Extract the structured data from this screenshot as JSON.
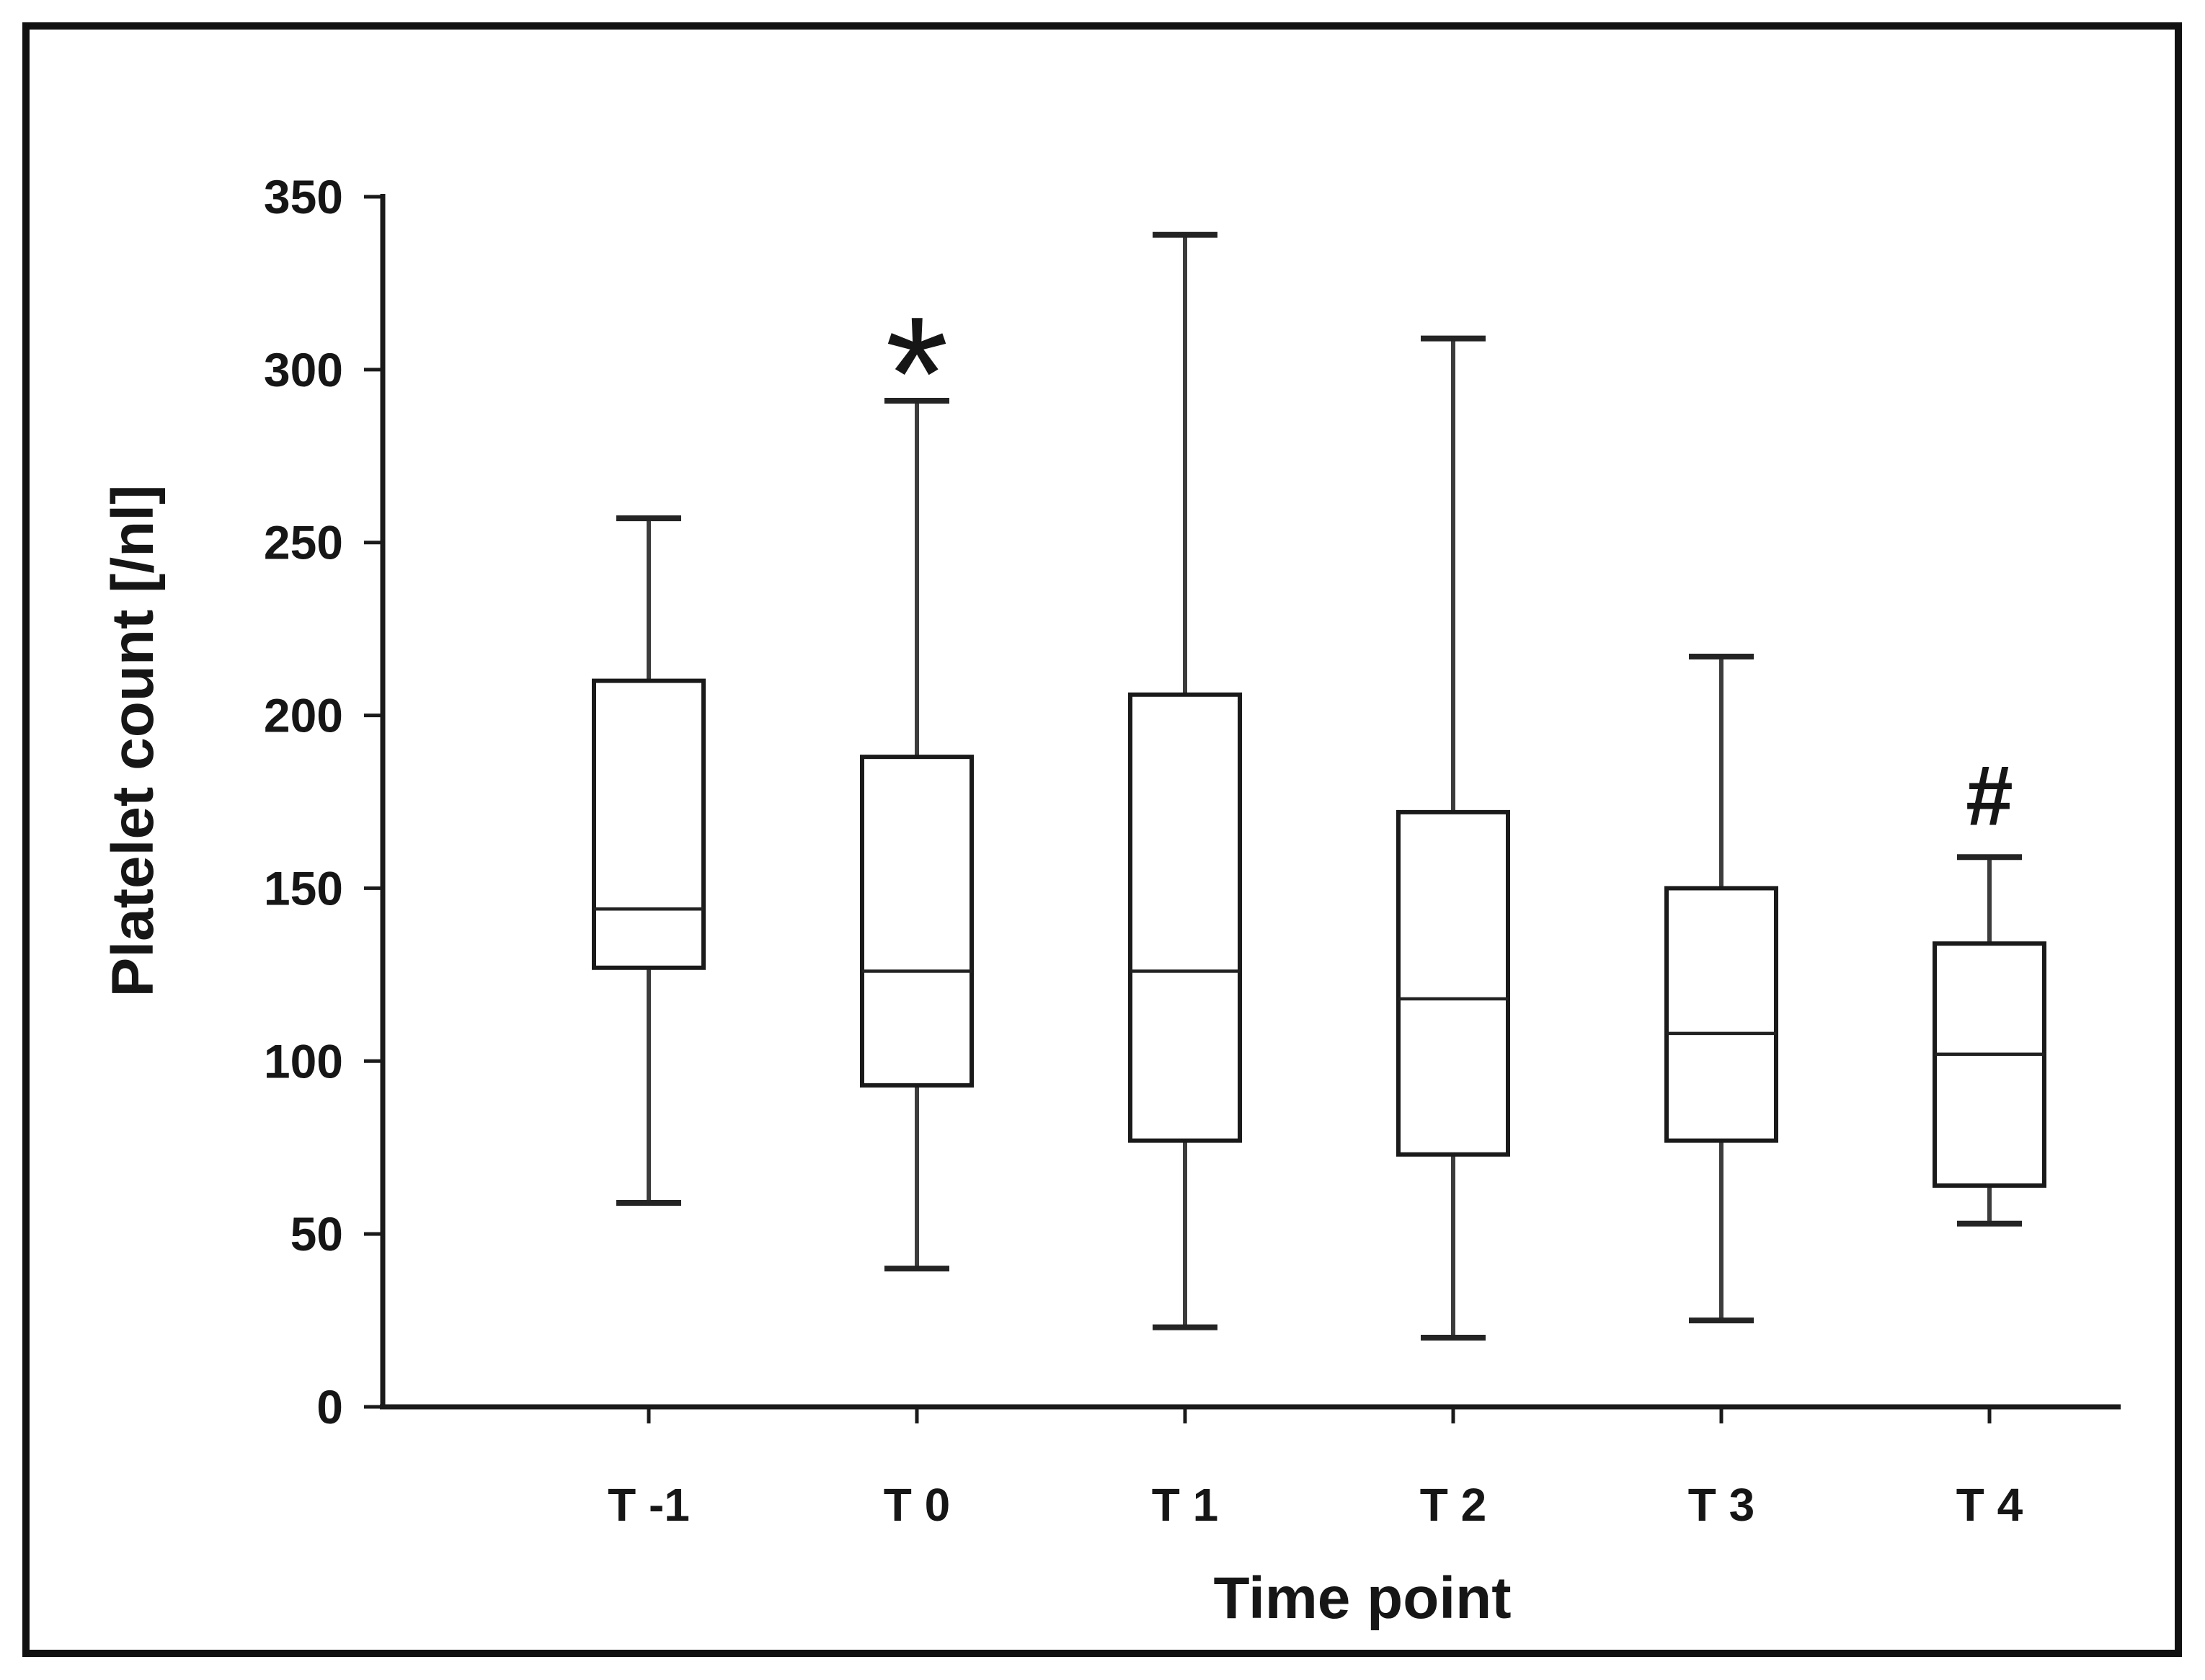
{
  "figure": {
    "y_axis_title": "Platelet count [/nl]",
    "x_axis_title": "Time point"
  },
  "chart_data": {
    "type": "boxplot",
    "title": "",
    "xlabel": "Time point",
    "ylabel": "Platelet count [/nl]",
    "ylim": [
      0,
      350
    ],
    "y_tick_step": 50,
    "y_ticks": [
      0,
      50,
      100,
      150,
      200,
      250,
      300,
      350
    ],
    "grid": false,
    "legend": null,
    "categories": [
      "T -1",
      "T 0",
      "T 1",
      "T 2",
      "T 3",
      "T 4"
    ],
    "series": [
      {
        "category": "T -1",
        "min": 59,
        "q1": 127,
        "median": 144,
        "q3": 210,
        "max": 257,
        "annotation": ""
      },
      {
        "category": "T 0",
        "min": 40,
        "q1": 93,
        "median": 126,
        "q3": 188,
        "max": 291,
        "annotation": "*"
      },
      {
        "category": "T 1",
        "min": 23,
        "q1": 77,
        "median": 126,
        "q3": 206,
        "max": 339,
        "annotation": ""
      },
      {
        "category": "T 2",
        "min": 20,
        "q1": 73,
        "median": 118,
        "q3": 172,
        "max": 309,
        "annotation": ""
      },
      {
        "category": "T 3",
        "min": 25,
        "q1": 77,
        "median": 108,
        "q3": 150,
        "max": 217,
        "annotation": ""
      },
      {
        "category": "T 4",
        "min": 53,
        "q1": 64,
        "median": 102,
        "q3": 134,
        "max": 159,
        "annotation": "#"
      }
    ]
  }
}
